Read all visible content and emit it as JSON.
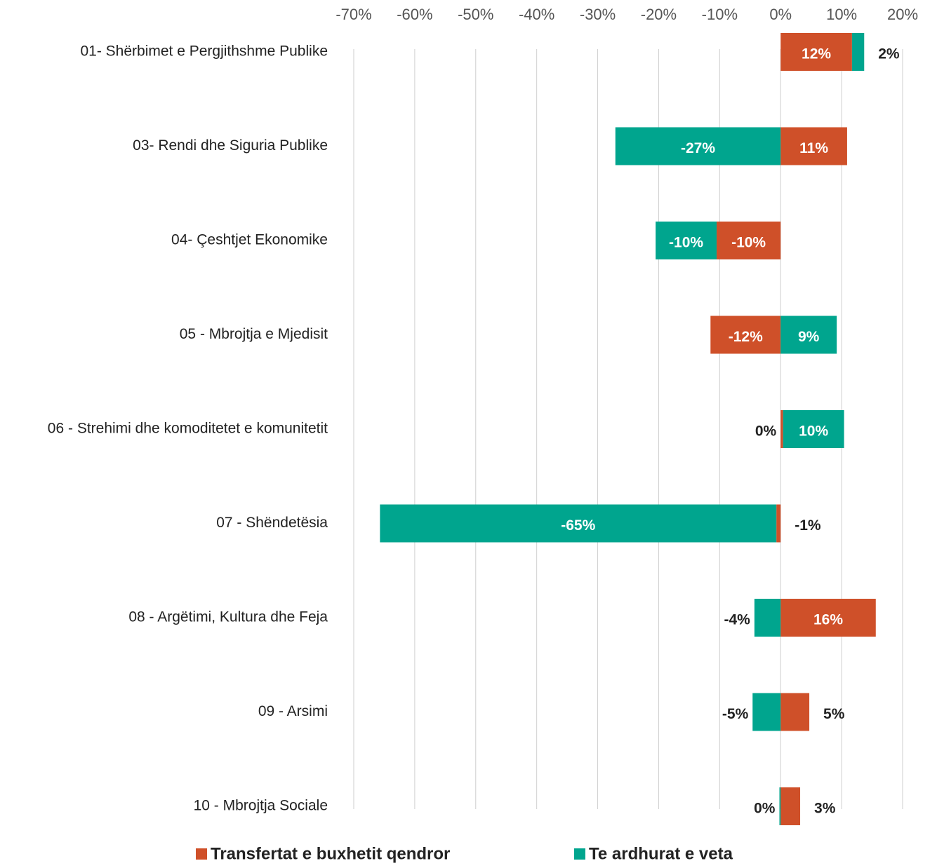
{
  "chart_data": {
    "type": "bar",
    "orientation": "horizontal",
    "stacked": true,
    "categories": [
      "01- Shërbimet e Pergjithshme Publike",
      "03- Rendi dhe Siguria Publike",
      "04- Çeshtjet Ekonomike",
      "05 - Mbrojtja e Mjedisit",
      "06 - Strehimi dhe komoditetet e komunitetit",
      "07 - Shëndetësia",
      "08 - Argëtimi, Kultura dhe Feja",
      "09 - Arsimi",
      "10 - Mbrojtja Sociale"
    ],
    "series": [
      {
        "name": "Transfertat e buxhetit qendror",
        "color": "#cf5029",
        "values": [
          11.7,
          10.9,
          -10.5,
          -11.5,
          0.4,
          -0.7,
          15.6,
          4.7,
          3.2
        ],
        "value_labels": [
          "12%",
          "11%",
          "-10%",
          "-12%",
          "0%",
          "-1%",
          "16%",
          "5%",
          "3%"
        ]
      },
      {
        "name": "Te ardhurat e veta",
        "color": "#00a58e",
        "values": [
          2,
          -27.1,
          -10,
          9.2,
          10,
          -65,
          -4.3,
          -4.6,
          -0.2
        ],
        "value_labels": [
          "2%",
          "-27%",
          "-10%",
          "9%",
          "10%",
          "-65%",
          "-4%",
          "-5%",
          "0%"
        ]
      }
    ],
    "xlim": [
      -70,
      20
    ],
    "xticks": [
      {
        "value": -70,
        "label": "-70%"
      },
      {
        "value": -60,
        "label": "-60%"
      },
      {
        "value": -50,
        "label": "-50%"
      },
      {
        "value": -40,
        "label": "-40%"
      },
      {
        "value": -30,
        "label": "-30%"
      },
      {
        "value": -20,
        "label": "-20%"
      },
      {
        "value": -10,
        "label": "-10%"
      },
      {
        "value": 0,
        "label": "0%"
      },
      {
        "value": 10,
        "label": "10%"
      },
      {
        "value": 20,
        "label": "20%"
      }
    ],
    "grid": true,
    "legend": "bottom"
  }
}
